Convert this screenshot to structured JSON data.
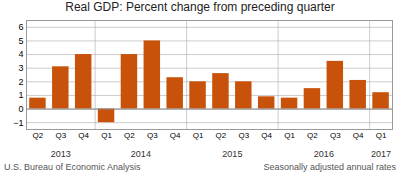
{
  "chart_data": {
    "type": "bar",
    "title": "Real GDP:  Percent change from preceding quarter",
    "categories": [
      "Q2",
      "Q3",
      "Q4",
      "Q1",
      "Q2",
      "Q3",
      "Q4",
      "Q1",
      "Q2",
      "Q3",
      "Q4",
      "Q1",
      "Q2",
      "Q3",
      "Q4",
      "Q1"
    ],
    "groups": [
      "2013",
      "2013",
      "2013",
      "2014",
      "2014",
      "2014",
      "2014",
      "2015",
      "2015",
      "2015",
      "2015",
      "2016",
      "2016",
      "2016",
      "2016",
      "2017"
    ],
    "values": [
      0.8,
      3.1,
      4.0,
      -1.0,
      4.0,
      5.0,
      2.3,
      2.0,
      2.6,
      2.0,
      0.9,
      0.8,
      1.5,
      3.5,
      2.1,
      1.2
    ],
    "color": "#C8520A",
    "ylim": [
      -1.5,
      6.5
    ],
    "yticks": [
      -1,
      0,
      1,
      2,
      3,
      4,
      5,
      6
    ],
    "grid": true,
    "annotations": [
      "U.S. Bureau of Economic Analysis",
      "Seasonally adjusted annual rates"
    ]
  }
}
